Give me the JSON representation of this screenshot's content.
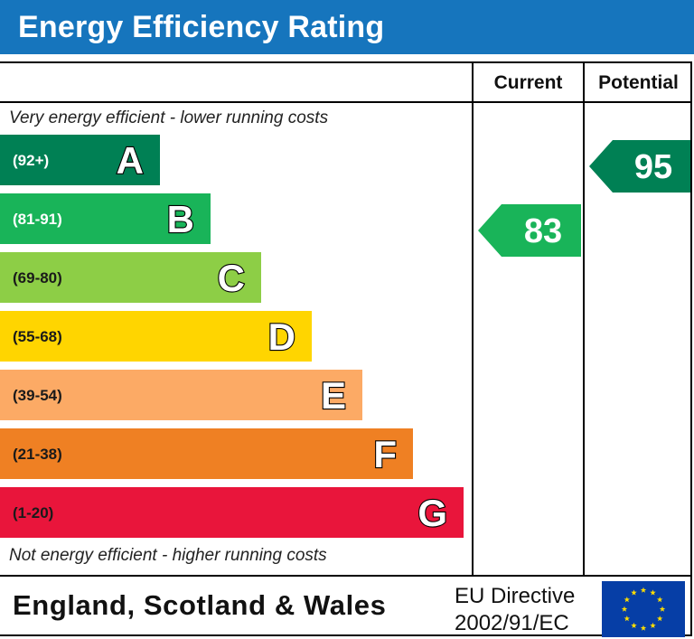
{
  "header": {
    "title": "Energy Efficiency Rating"
  },
  "columns": {
    "current": "Current",
    "potential": "Potential"
  },
  "notes": {
    "top": "Very energy efficient - lower running costs",
    "bottom": "Not energy efficient - higher running costs"
  },
  "footer": {
    "region": "England, Scotland & Wales",
    "directive_line1": "EU Directive",
    "directive_line2": "2002/91/EC",
    "flag_icon": "eu-flag-icon"
  },
  "chart_data": {
    "type": "bar",
    "title": "Energy Efficiency Rating",
    "bands": [
      {
        "letter": "A",
        "range": "(92+)",
        "color": "#008054",
        "range_color": "#ffffff"
      },
      {
        "letter": "B",
        "range": "(81-91)",
        "color": "#19b459",
        "range_color": "#ffffff"
      },
      {
        "letter": "C",
        "range": "(69-80)",
        "color": "#8dce46",
        "range_color": "#1a1a1a"
      },
      {
        "letter": "D",
        "range": "(55-68)",
        "color": "#ffd500",
        "range_color": "#1a1a1a"
      },
      {
        "letter": "E",
        "range": "(39-54)",
        "color": "#fcaa65",
        "range_color": "#1a1a1a"
      },
      {
        "letter": "F",
        "range": "(21-38)",
        "color": "#ef8023",
        "range_color": "#1a1a1a"
      },
      {
        "letter": "G",
        "range": "(1-20)",
        "color": "#e9153b",
        "range_color": "#1a1a1a"
      }
    ],
    "current": {
      "value": 83,
      "band": "B",
      "color": "#19b459"
    },
    "potential": {
      "value": 95,
      "band": "A",
      "color": "#008054"
    }
  }
}
